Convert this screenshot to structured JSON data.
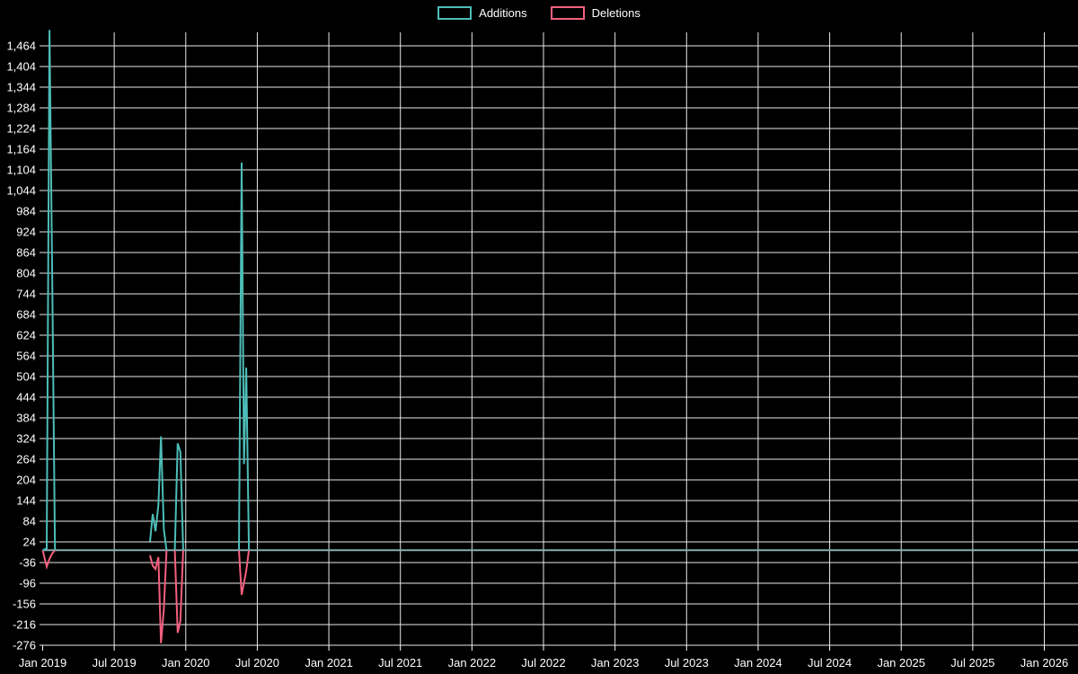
{
  "page": {
    "background_color": "#000000",
    "text_color": "#ffffff",
    "grid_color": "#e8e8e8"
  },
  "chart_data": {
    "type": "line",
    "title": "",
    "xlabel": "",
    "ylabel": "",
    "legend_position": "top",
    "grid": true,
    "x_axis": {
      "unit": "months since Jan 2019",
      "months_per_tick": 6,
      "tick_labels": [
        "Jan 2019",
        "Jul 2019",
        "Jan 2020",
        "Jul 2020",
        "Jan 2021",
        "Jul 2021",
        "Jan 2022",
        "Jul 2022",
        "Jan 2023",
        "Jul 2023",
        "Jan 2024",
        "Jul 2024",
        "Jan 2025",
        "Jul 2025",
        "Jan 2026"
      ]
    },
    "y_axis": {
      "min": -276,
      "max": 1464,
      "step": 60,
      "tick_labels": [
        "1,464",
        "1,404",
        "1,344",
        "1,284",
        "1,224",
        "1,164",
        "1,104",
        "1,044",
        "984",
        "924",
        "864",
        "804",
        "744",
        "684",
        "624",
        "564",
        "504",
        "444",
        "384",
        "324",
        "264",
        "204",
        "144",
        "84",
        "24",
        "-36",
        "-96",
        "-156",
        "-216",
        "-276"
      ]
    },
    "baseline_value": 0,
    "series": [
      {
        "name": "Additions",
        "color": "#4dbdb8",
        "note": "zero across entire timeline except spike clusters; Jan 2019 spike is clipped at top of plot (>1,500)",
        "segments": [
          [
            [
              0,
              0
            ],
            [
              0.34,
              5
            ],
            [
              0.57,
              1510
            ],
            [
              0.8,
              800
            ],
            [
              1.03,
              0
            ]
          ],
          [
            [
              9.0,
              25
            ],
            [
              9.23,
              105
            ],
            [
              9.46,
              55
            ],
            [
              9.7,
              130
            ],
            [
              9.92,
              330
            ],
            [
              10.16,
              60
            ],
            [
              10.39,
              0
            ]
          ],
          [
            [
              11.08,
              0
            ],
            [
              11.32,
              310
            ],
            [
              11.55,
              285
            ],
            [
              11.78,
              0
            ]
          ],
          [
            [
              16.46,
              0
            ],
            [
              16.69,
              1125
            ],
            [
              16.88,
              250
            ],
            [
              17.07,
              530
            ],
            [
              17.3,
              0
            ]
          ]
        ]
      },
      {
        "name": "Deletions",
        "color": "#f4607f",
        "note": "zero across entire timeline except spike clusters",
        "segments": [
          [
            [
              0,
              0
            ],
            [
              0.34,
              -48
            ],
            [
              0.57,
              -25
            ],
            [
              0.8,
              -10
            ],
            [
              1.03,
              0
            ]
          ],
          [
            [
              9.0,
              -15
            ],
            [
              9.23,
              -45
            ],
            [
              9.46,
              -55
            ],
            [
              9.7,
              -20
            ],
            [
              9.92,
              -270
            ],
            [
              10.16,
              -170
            ],
            [
              10.39,
              0
            ]
          ],
          [
            [
              11.08,
              0
            ],
            [
              11.32,
              -240
            ],
            [
              11.55,
              -205
            ],
            [
              11.78,
              0
            ]
          ],
          [
            [
              16.46,
              0
            ],
            [
              16.69,
              -130
            ],
            [
              17.07,
              -60
            ],
            [
              17.3,
              0
            ]
          ]
        ]
      }
    ],
    "overlap_line_color": "#84aeb2"
  }
}
